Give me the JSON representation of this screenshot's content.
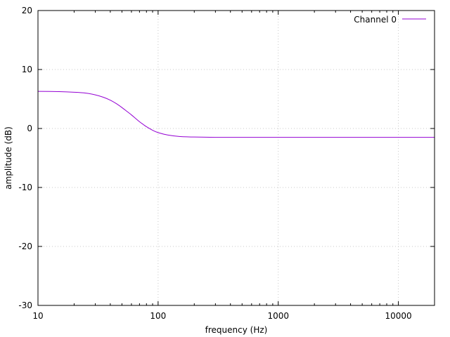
{
  "chart_data": {
    "type": "line",
    "title": "",
    "xlabel": "frequency (Hz)",
    "ylabel": "amplitude (dB)",
    "xscale": "log",
    "xlim": [
      10,
      20000
    ],
    "ylim": [
      -30,
      20
    ],
    "xticks": [
      10,
      100,
      1000,
      10000
    ],
    "xtick_labels": [
      "10",
      "100",
      "1000",
      "10000"
    ],
    "yticks": [
      -30,
      -20,
      -10,
      0,
      10,
      20
    ],
    "ytick_labels": [
      "-30",
      "-20",
      "-10",
      "0",
      "10",
      "20"
    ],
    "grid": true,
    "legend_position": "top-right",
    "series": [
      {
        "name": "Channel 0",
        "color": "#9400d3",
        "x": [
          10,
          15,
          20,
          25,
          30,
          35,
          40,
          45,
          50,
          55,
          60,
          65,
          70,
          75,
          80,
          90,
          100,
          120,
          150,
          200,
          300,
          500,
          1000,
          2000,
          5000,
          10000,
          20000
        ],
        "y": [
          6.3,
          6.25,
          6.15,
          6.0,
          5.7,
          5.3,
          4.8,
          4.2,
          3.55,
          2.9,
          2.3,
          1.7,
          1.15,
          0.7,
          0.3,
          -0.3,
          -0.7,
          -1.1,
          -1.35,
          -1.45,
          -1.5,
          -1.5,
          -1.5,
          -1.5,
          -1.5,
          -1.5,
          -1.5
        ]
      }
    ]
  }
}
